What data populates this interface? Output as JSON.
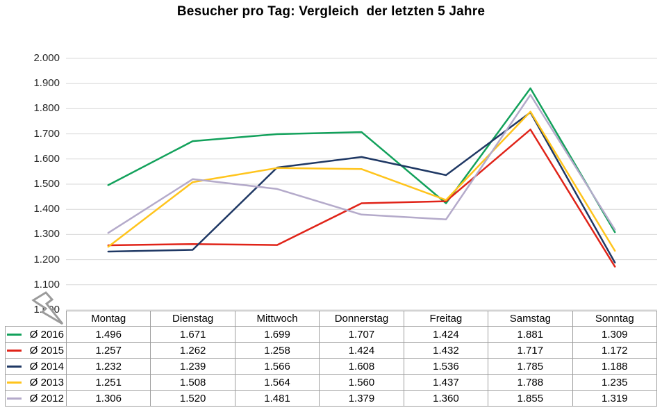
{
  "title": "Besucher pro Tag: Vergleich  der letzten 5 Jahre",
  "chart_data": {
    "type": "line",
    "categories": [
      "Montag",
      "Dienstag",
      "Mittwoch",
      "Donnerstag",
      "Freitag",
      "Samstag",
      "Sonntag"
    ],
    "series": [
      {
        "name": "Ø 2016",
        "color": "#12A15B",
        "values": [
          1496,
          1671,
          1699,
          1707,
          1424,
          1881,
          1309
        ]
      },
      {
        "name": "Ø 2015",
        "color": "#E02318",
        "values": [
          1257,
          1262,
          1258,
          1424,
          1432,
          1717,
          1172
        ]
      },
      {
        "name": "Ø 2014",
        "color": "#1F3864",
        "values": [
          1232,
          1239,
          1566,
          1608,
          1536,
          1785,
          1188
        ]
      },
      {
        "name": "Ø 2013",
        "color": "#FFC41C",
        "values": [
          1251,
          1508,
          1564,
          1560,
          1437,
          1788,
          1235
        ]
      },
      {
        "name": "Ø 2012",
        "color": "#B4AACA",
        "values": [
          1306,
          1520,
          1481,
          1379,
          1360,
          1855,
          1319
        ]
      }
    ],
    "ylim": [
      1000,
      2000
    ],
    "ytick_labels": [
      "2.000",
      "1.900",
      "1.800",
      "1.700",
      "1.600",
      "1.500",
      "1.400",
      "1.300",
      "1.200",
      "1.100",
      "1.000"
    ],
    "grid": true,
    "gridline_color": "#D9D9D9",
    "legend_position": "table-left"
  },
  "table": {
    "headers": [
      "Montag",
      "Dienstag",
      "Mittwoch",
      "Donnerstag",
      "Freitag",
      "Samstag",
      "Sonntag"
    ],
    "rows": [
      {
        "label": "Ø 2016",
        "values": [
          "1.496",
          "1.671",
          "1.699",
          "1.707",
          "1.424",
          "1.881",
          "1.309"
        ]
      },
      {
        "label": "Ø 2015",
        "values": [
          "1.257",
          "1.262",
          "1.258",
          "1.424",
          "1.432",
          "1.717",
          "1.172"
        ]
      },
      {
        "label": "Ø 2014",
        "values": [
          "1.232",
          "1.239",
          "1.566",
          "1.608",
          "1.536",
          "1.785",
          "1.188"
        ]
      },
      {
        "label": "Ø 2013",
        "values": [
          "1.251",
          "1.508",
          "1.564",
          "1.560",
          "1.437",
          "1.788",
          "1.235"
        ]
      },
      {
        "label": "Ø 2012",
        "values": [
          "1.306",
          "1.520",
          "1.481",
          "1.379",
          "1.360",
          "1.855",
          "1.319"
        ]
      }
    ]
  },
  "annotations": {
    "cursor_shape": "lightning-bolt-cursor",
    "cursor_color": "#9B9B9B"
  }
}
